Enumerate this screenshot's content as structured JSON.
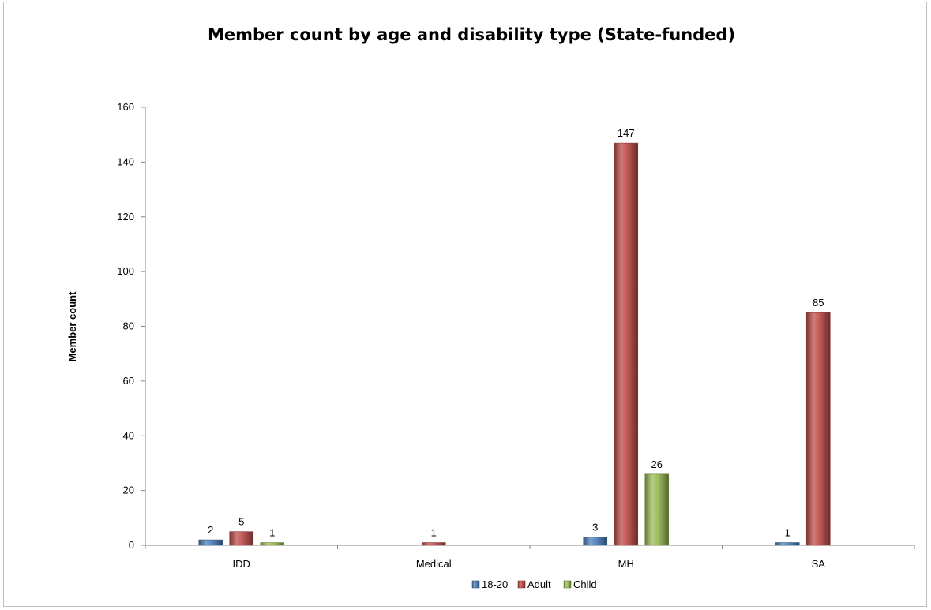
{
  "chart_data": {
    "type": "bar",
    "title": "Member count by age and disability type (State-funded)",
    "xlabel": "",
    "ylabel": "Member count",
    "categories": [
      "IDD",
      "Medical",
      "MH",
      "SA"
    ],
    "ylim": [
      0,
      160
    ],
    "yticks": [
      0,
      20,
      40,
      60,
      80,
      100,
      120,
      140,
      160
    ],
    "grid": false,
    "legend_position": "bottom",
    "series": [
      {
        "name": "18-20",
        "color": "#4f81bd",
        "values": [
          2,
          null,
          3,
          1
        ]
      },
      {
        "name": "Adult",
        "color": "#c0504d",
        "values": [
          5,
          1,
          147,
          85
        ]
      },
      {
        "name": "Child",
        "color": "#9bbb59",
        "values": [
          1,
          null,
          26,
          null
        ]
      }
    ]
  }
}
